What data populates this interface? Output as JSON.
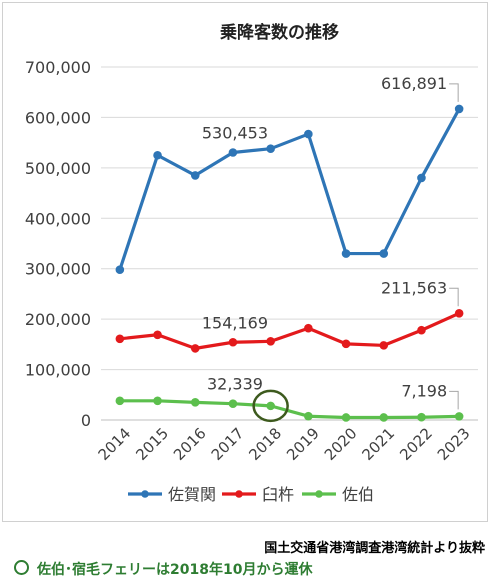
{
  "chart_data": {
    "type": "line",
    "title": "乗降客数の推移",
    "categories": [
      "2014",
      "2015",
      "2016",
      "2017",
      "2018",
      "2019",
      "2020",
      "2021",
      "2022",
      "2023"
    ],
    "ylim": [
      0,
      700000
    ],
    "yticks": [
      "0",
      "100,000",
      "200,000",
      "300,000",
      "400,000",
      "500,000",
      "600,000",
      "700,000"
    ],
    "grid": true,
    "legend_position": "bottom",
    "series": [
      {
        "name": "佐賀関",
        "color": "#2e75b6",
        "values": [
          298000,
          525000,
          485000,
          530453,
          538000,
          567000,
          330000,
          330000,
          480000,
          616891
        ]
      },
      {
        "name": "臼杵",
        "color": "#e31a1c",
        "values": [
          161000,
          169000,
          142000,
          154169,
          156000,
          182000,
          151000,
          148000,
          178000,
          211563
        ]
      },
      {
        "name": "佐伯",
        "color": "#5cbf4d",
        "values": [
          38000,
          38000,
          35000,
          32339,
          28000,
          7500,
          5000,
          5000,
          5500,
          7198
        ]
      }
    ],
    "annotations": [
      {
        "text": "530,453",
        "series": 0,
        "index": 3
      },
      {
        "text": "616,891",
        "series": 0,
        "index": 9
      },
      {
        "text": "154,169",
        "series": 1,
        "index": 3
      },
      {
        "text": "211,563",
        "series": 1,
        "index": 9
      },
      {
        "text": "32,339",
        "series": 2,
        "index": 3
      },
      {
        "text": "7,198",
        "series": 2,
        "index": 9
      }
    ],
    "highlight": {
      "series": 2,
      "index": 4
    }
  },
  "footer": {
    "source": "国土交通省港湾調査港湾統計より抜粋",
    "note": "佐伯･宿毛フェリーは2018年10月から運休"
  }
}
